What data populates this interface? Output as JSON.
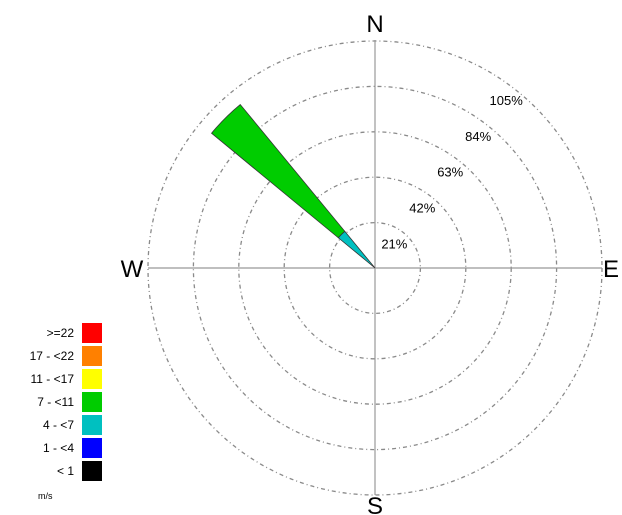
{
  "chart_data": {
    "type": "wind-rose",
    "directions": {
      "north": "N",
      "east": "E",
      "south": "S",
      "west": "W"
    },
    "radial_axis": {
      "max_percent": 105,
      "rings": [
        {
          "value": 21,
          "label": "21%"
        },
        {
          "value": 42,
          "label": "42%"
        },
        {
          "value": 63,
          "label": "63%"
        },
        {
          "value": 84,
          "label": "84%"
        },
        {
          "value": 105,
          "label": "105%"
        }
      ]
    },
    "legend": {
      "unit": "m/s",
      "bins": [
        {
          "label": ">=22",
          "color": "#ff0000"
        },
        {
          "label": "17 - <22",
          "color": "#ff8000"
        },
        {
          "label": "11 - <17",
          "color": "#ffff00"
        },
        {
          "label": "7 - <11",
          "color": "#00cc00"
        },
        {
          "label": "4 - <7",
          "color": "#00c0c0"
        },
        {
          "label": "1 - <4",
          "color": "#0000ff"
        },
        {
          "label": "< 1",
          "color": "#000000"
        }
      ]
    },
    "petals": [
      {
        "direction_deg": 315,
        "segments": [
          {
            "bin": "4 - <7",
            "color": "#00c0c0",
            "from": 0,
            "to": 22
          },
          {
            "bin": "7 - <11",
            "color": "#00cc00",
            "from": 22,
            "to": 98
          }
        ]
      }
    ]
  }
}
